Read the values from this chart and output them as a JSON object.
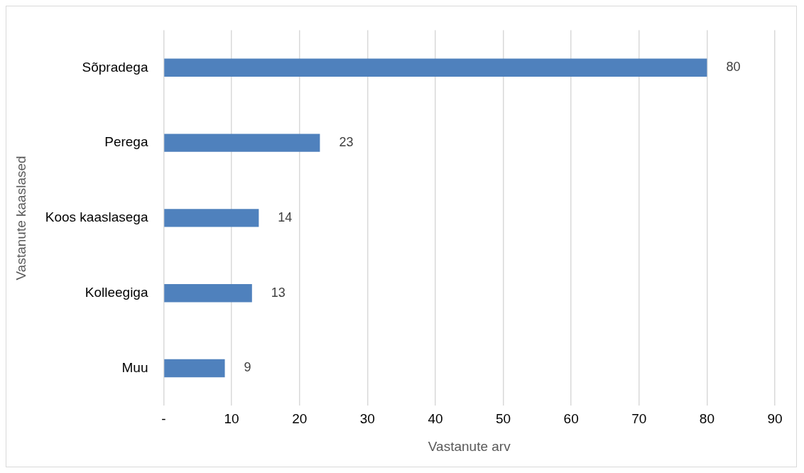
{
  "chart_data": {
    "type": "bar",
    "orientation": "horizontal",
    "xlabel": "Vastanute arv",
    "ylabel": "Vastanute kaaslased",
    "categories": [
      "Sõpradega",
      "Perega",
      "Koos kaaslasega",
      "Kolleegiga",
      "Muu"
    ],
    "values": [
      80,
      23,
      14,
      13,
      9
    ],
    "color": "#4f81bd",
    "xlim": [
      0,
      90
    ],
    "xticks": [
      {
        "value": 0,
        "label": "-"
      },
      10,
      20,
      30,
      40,
      50,
      60,
      70,
      80,
      90
    ],
    "grid": "x",
    "legend": false,
    "data_labels": true
  }
}
